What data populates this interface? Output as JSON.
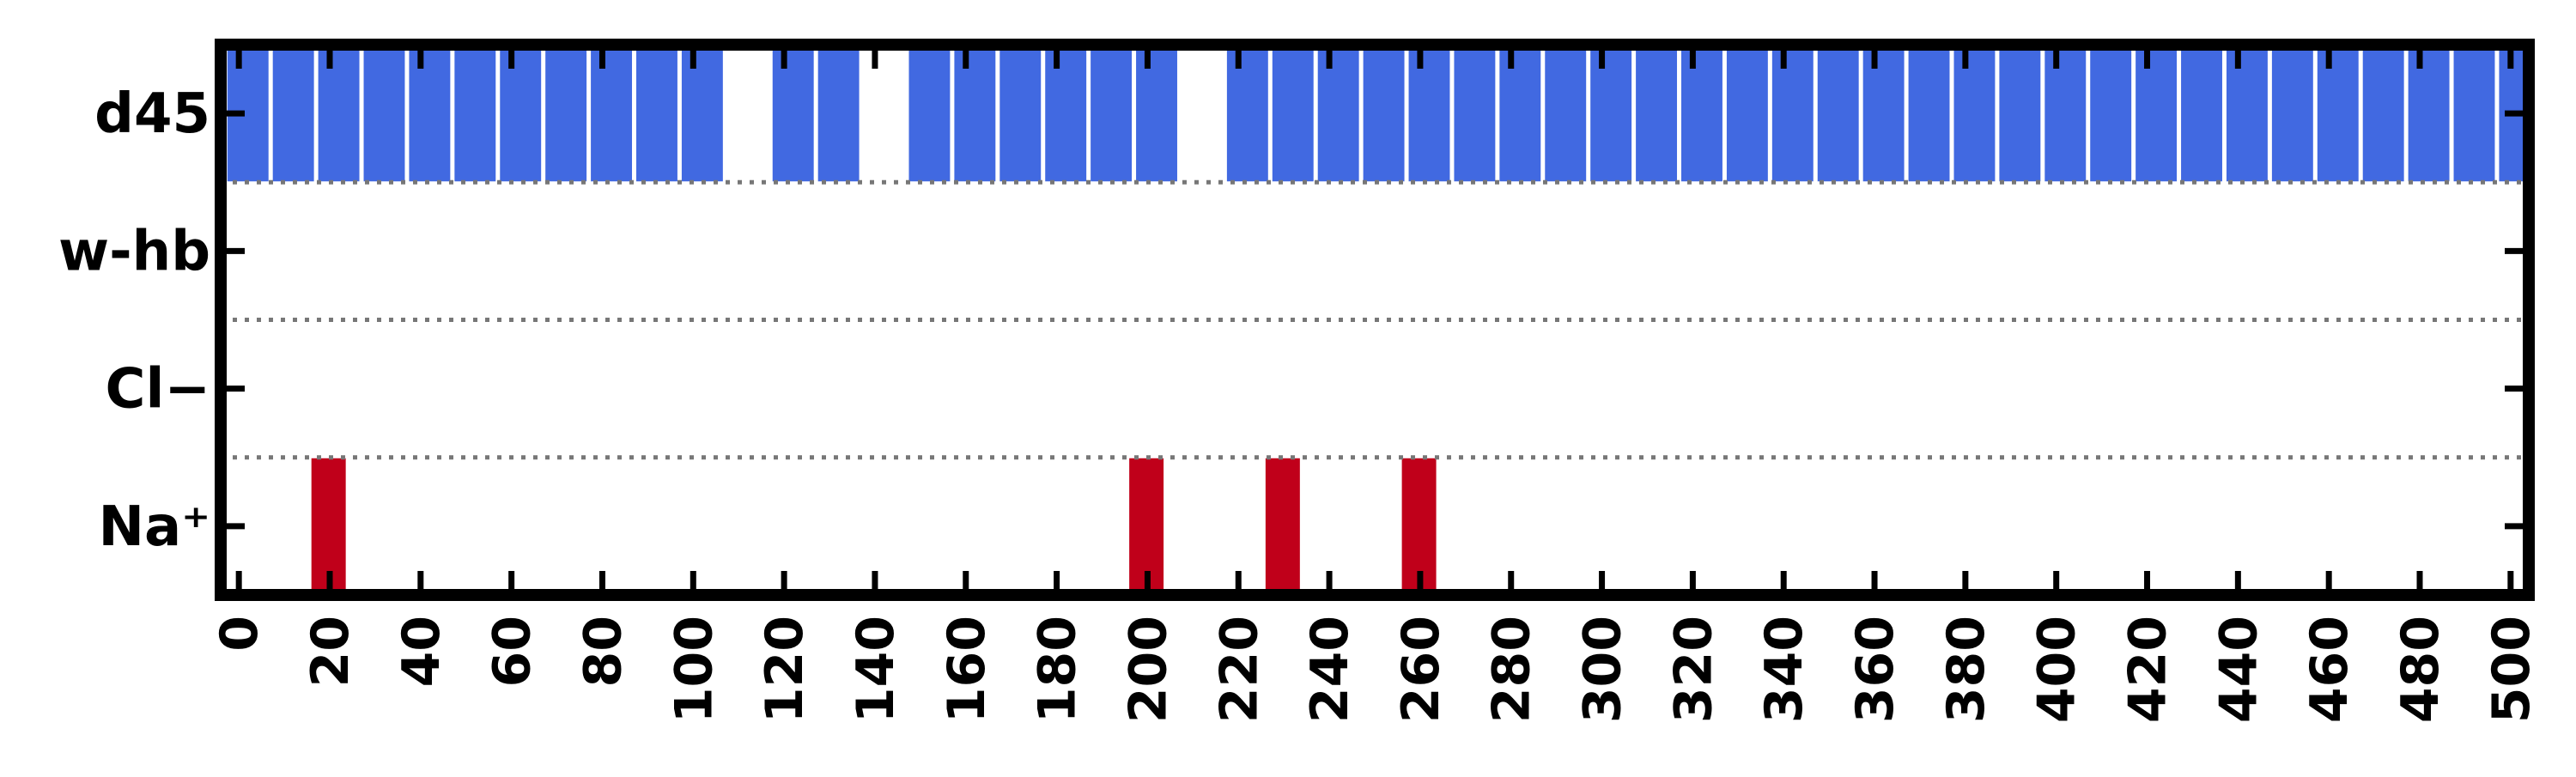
{
  "chart_data": {
    "type": "bar",
    "xlim": [
      -4,
      504
    ],
    "x_ticks": [
      0,
      20,
      40,
      60,
      80,
      100,
      120,
      140,
      160,
      180,
      200,
      220,
      240,
      260,
      280,
      300,
      320,
      340,
      360,
      380,
      400,
      420,
      440,
      460,
      480,
      500
    ],
    "x_tick_labels": [
      "0",
      "20",
      "40",
      "60",
      "80",
      "100",
      "120",
      "140",
      "160",
      "180",
      "200",
      "220",
      "240",
      "260",
      "280",
      "300",
      "320",
      "340",
      "360",
      "380",
      "400",
      "420",
      "440",
      "460",
      "480",
      "500"
    ],
    "rows": [
      {
        "label": "d45",
        "color": "#4169e1",
        "bin_width": 10,
        "starts": [
          -3,
          7,
          17,
          27,
          37,
          47,
          57,
          67,
          77,
          87,
          97,
          117,
          127,
          147,
          157,
          167,
          177,
          187,
          197,
          217,
          227,
          237,
          247,
          257,
          267,
          277,
          287,
          297,
          307,
          317,
          327,
          337,
          347,
          357,
          367,
          377,
          387,
          397,
          407,
          417,
          427,
          437,
          447,
          457,
          467,
          477,
          487,
          497
        ]
      },
      {
        "label": "w-hb",
        "color": "#4169e1",
        "bin_width": 10,
        "starts": []
      },
      {
        "label": "Cl−",
        "color": "#c0001a",
        "bin_width": 10,
        "starts": []
      },
      {
        "label": "Na⁺",
        "color": "#c0001a",
        "bin_width": 8.5,
        "starts": [
          15.5,
          195.5,
          225.5,
          255.5
        ]
      }
    ],
    "grid": false,
    "row_separator": "dotted"
  }
}
